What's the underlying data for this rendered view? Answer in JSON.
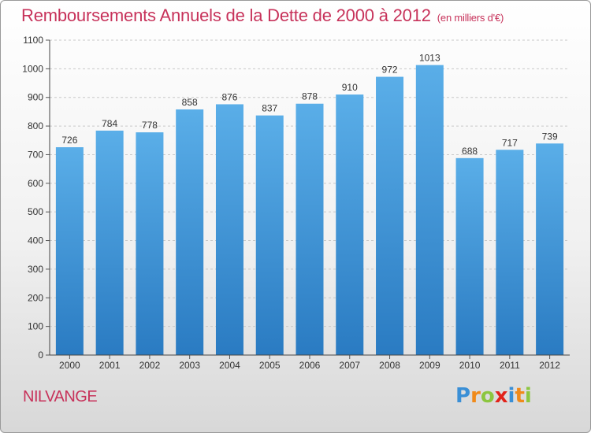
{
  "title": "Remboursements Annuels de la Dette de 2000 à 2012",
  "subtitle": "(en milliers d'€)",
  "town": "NILVANGE",
  "logo": {
    "letters": [
      "P",
      "r",
      "o",
      "x",
      "i",
      "t",
      "i"
    ],
    "colors": [
      "#3a8fd6",
      "#f08a1a",
      "#8cc63f",
      "#e2231a",
      "#3a8fd6",
      "#f08a1a",
      "#8cc63f"
    ]
  },
  "colors": {
    "title": "#c7325a",
    "bar_top": "#5aaee8",
    "bar_bottom": "#2a7bc2",
    "grid": "#c8c8c8"
  },
  "chart_data": {
    "type": "bar",
    "categories": [
      "2000",
      "2001",
      "2002",
      "2003",
      "2004",
      "2005",
      "2006",
      "2007",
      "2008",
      "2009",
      "2010",
      "2011",
      "2012"
    ],
    "values": [
      726,
      784,
      778,
      858,
      876,
      837,
      878,
      910,
      972,
      1013,
      688,
      717,
      739
    ],
    "yticks": [
      0,
      100,
      200,
      300,
      400,
      500,
      600,
      700,
      800,
      900,
      1000,
      1100
    ],
    "ylim": [
      0,
      1100
    ],
    "grid": true,
    "xlabel": "",
    "ylabel": ""
  }
}
